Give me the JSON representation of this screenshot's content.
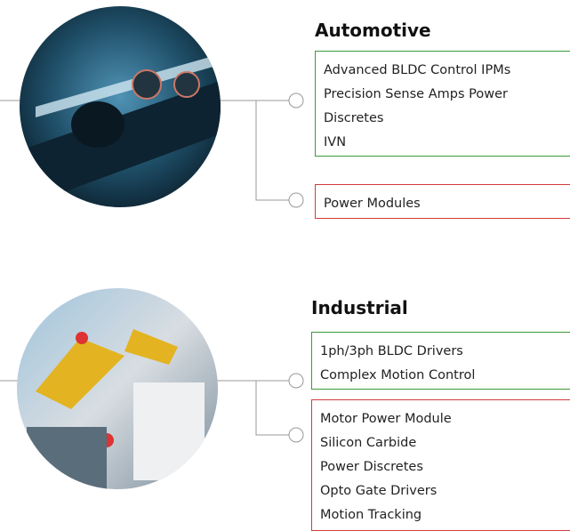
{
  "sections": [
    {
      "title": "Automotive",
      "green_items": [
        "Advanced BLDC Control IPMs",
        "Precision Sense Amps Power",
        "Discretes",
        "IVN"
      ],
      "red_items": [
        "Power Modules"
      ]
    },
    {
      "title": "Industrial",
      "green_items": [
        "1ph/3ph BLDC Drivers",
        "Complex Motion Control"
      ],
      "red_items": [
        "Motor Power Module",
        "Silicon Carbide",
        "Power Discretes",
        "Opto Gate Drivers",
        "Motion Tracking"
      ]
    }
  ]
}
